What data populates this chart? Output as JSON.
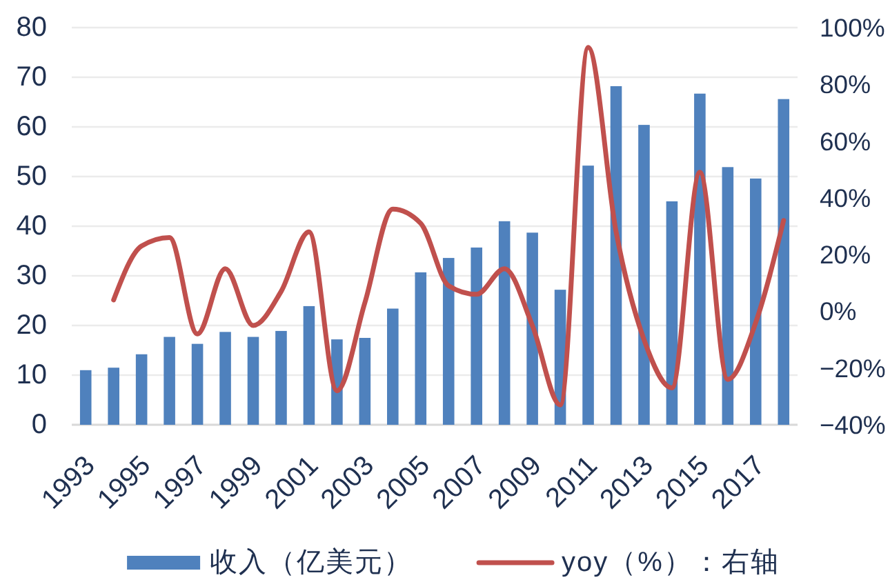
{
  "chart_data": {
    "type": "bar",
    "categories": [
      "1993",
      null,
      "1995",
      null,
      "1997",
      null,
      "1999",
      null,
      "2001",
      null,
      "2003",
      null,
      "2005",
      null,
      "2007",
      null,
      "2009",
      null,
      "2011",
      null,
      "2013",
      null,
      "2015",
      null,
      "2017",
      null
    ],
    "series": [
      {
        "name": "收入（亿美元）",
        "color": "#4f81bd",
        "values": [
          11.0,
          11.5,
          14.2,
          17.7,
          16.3,
          18.7,
          17.7,
          18.9,
          23.9,
          17.2,
          17.5,
          23.4,
          30.7,
          33.6,
          35.7,
          41.0,
          38.7,
          27.2,
          52.2,
          68.2,
          60.4,
          45.0,
          66.7,
          51.9,
          49.6,
          65.6
        ]
      },
      {
        "name": "yoy（%）：右轴",
        "type": "line",
        "axis": "y2",
        "color": "#c0504d",
        "values": [
          null,
          4,
          23,
          26,
          -8,
          15,
          -5,
          7,
          28,
          -28,
          3,
          36,
          31,
          9,
          6,
          15,
          -5,
          -33,
          93,
          28,
          -10,
          -27,
          49,
          -24,
          -4,
          32
        ]
      }
    ],
    "ylim": [
      0,
      80
    ],
    "yticks": [
      0,
      10,
      20,
      30,
      40,
      50,
      60,
      70,
      80
    ],
    "y2lim": [
      -40,
      100
    ],
    "y2ticks": [
      {
        "value": -40,
        "label": "−40%"
      },
      {
        "value": -20,
        "label": "−20%"
      },
      {
        "value": 0,
        "label": "0%"
      },
      {
        "value": 20,
        "label": "20%"
      },
      {
        "value": 40,
        "label": "40%"
      },
      {
        "value": 60,
        "label": "60%"
      },
      {
        "value": 80,
        "label": "80%"
      },
      {
        "value": 100,
        "label": "100%"
      }
    ],
    "grid": "y",
    "legend": "bottom"
  }
}
